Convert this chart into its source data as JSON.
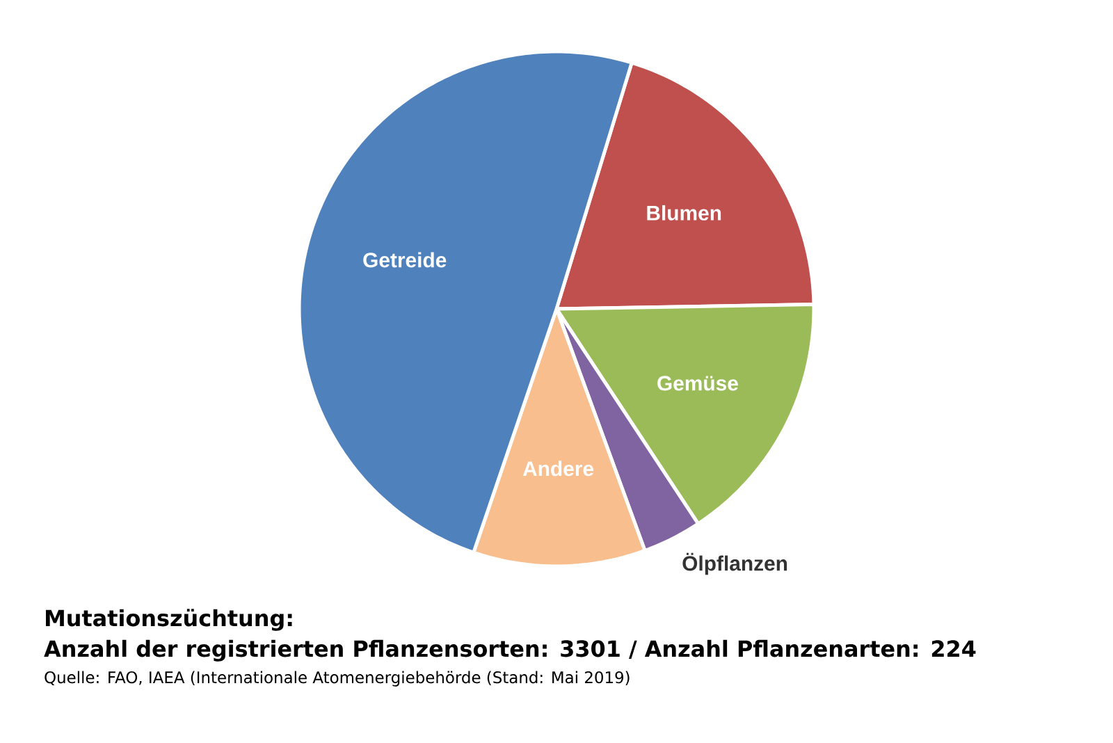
{
  "chart_data": {
    "type": "pie",
    "title": "Mutationszüchtung:",
    "subtitle": "Anzahl der registrierten Pflanzensorten: 3301 / Anzahl Pflanzenarten: 224",
    "categories": [
      "Blumen",
      "Gemüse",
      "Ölpflanzen",
      "Andere",
      "Getreide"
    ],
    "values": [
      20,
      16,
      3.7,
      10.8,
      49.5
    ],
    "colors": [
      "#c0504d",
      "#9bbb59",
      "#8064a2",
      "#f8be8e",
      "#4f81bd"
    ],
    "annotations": [
      "Quelle: FAO, IAEA (Internationale Atomenergiebehörde (Stand: Mai 2019)"
    ]
  }
}
